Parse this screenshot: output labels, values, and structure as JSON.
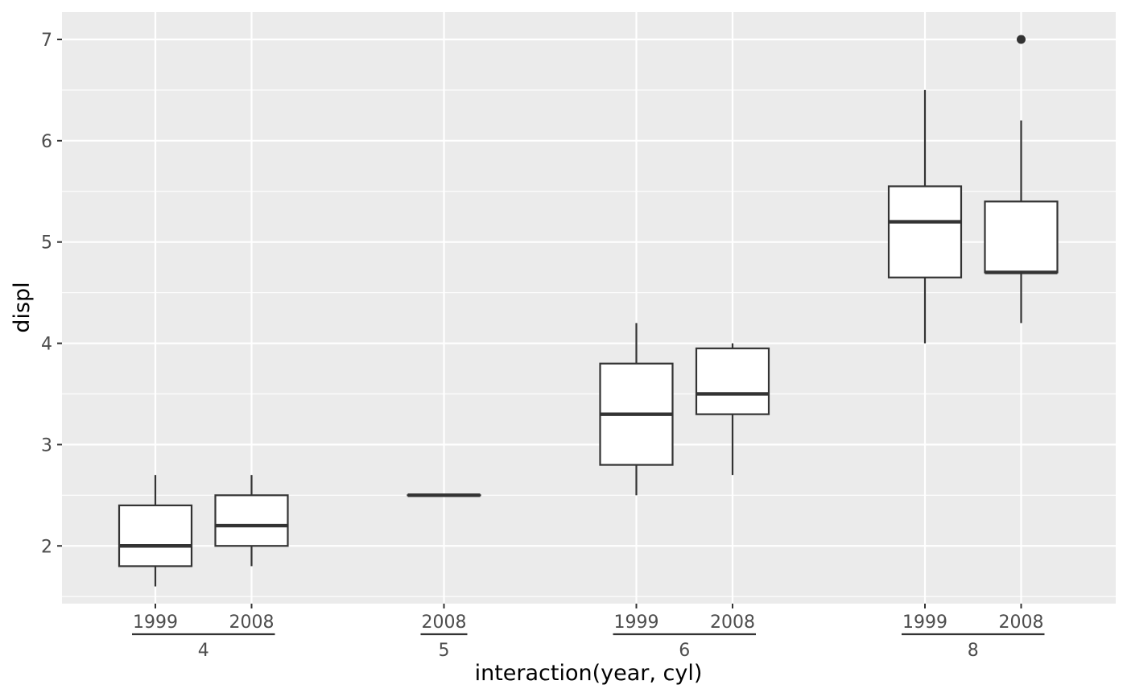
{
  "chart_data": {
    "type": "boxplot",
    "xlabel": "interaction(year, cyl)",
    "ylabel": "displ",
    "ylim": [
      1.43,
      7.27
    ],
    "y_ticks": [
      2,
      3,
      4,
      5,
      6,
      7
    ],
    "x_groups": [
      {
        "label": "4",
        "subcategories": [
          "1999",
          "2008"
        ]
      },
      {
        "label": "5",
        "subcategories": [
          "2008"
        ]
      },
      {
        "label": "6",
        "subcategories": [
          "1999",
          "2008"
        ]
      },
      {
        "label": "8",
        "subcategories": [
          "1999",
          "2008"
        ]
      }
    ],
    "boxes": [
      {
        "group": "4",
        "year": "1999",
        "slot": 1,
        "whisker_low": 1.6,
        "q1": 1.8,
        "median": 2.0,
        "q3": 2.4,
        "whisker_high": 2.7,
        "outliers": []
      },
      {
        "group": "4",
        "year": "2008",
        "slot": 2,
        "whisker_low": 1.8,
        "q1": 2.0,
        "median": 2.2,
        "q3": 2.5,
        "whisker_high": 2.7,
        "outliers": []
      },
      {
        "group": "5",
        "year": "2008",
        "slot": 4,
        "whisker_low": 2.5,
        "q1": 2.5,
        "median": 2.5,
        "q3": 2.5,
        "whisker_high": 2.5,
        "outliers": []
      },
      {
        "group": "6",
        "year": "1999",
        "slot": 6,
        "whisker_low": 2.5,
        "q1": 2.8,
        "median": 3.3,
        "q3": 3.8,
        "whisker_high": 4.2,
        "outliers": []
      },
      {
        "group": "6",
        "year": "2008",
        "slot": 7,
        "whisker_low": 2.7,
        "q1": 3.3,
        "median": 3.5,
        "q3": 3.95,
        "whisker_high": 4.0,
        "outliers": []
      },
      {
        "group": "8",
        "year": "1999",
        "slot": 9,
        "whisker_low": 4.0,
        "q1": 4.65,
        "median": 5.2,
        "q3": 5.55,
        "whisker_high": 6.5,
        "outliers": []
      },
      {
        "group": "8",
        "year": "2008",
        "slot": 10,
        "whisker_low": 4.2,
        "q1": 4.7,
        "median": 4.7,
        "q3": 5.4,
        "whisker_high": 6.2,
        "outliers": [
          7.0
        ]
      }
    ],
    "colors": {
      "panel_background": "#ebebeb",
      "grid": "#ffffff",
      "box_fill": "#ffffff",
      "box_line": "#333333",
      "tick_text": "#4d4d4d"
    },
    "grid": true,
    "legend": "none"
  }
}
